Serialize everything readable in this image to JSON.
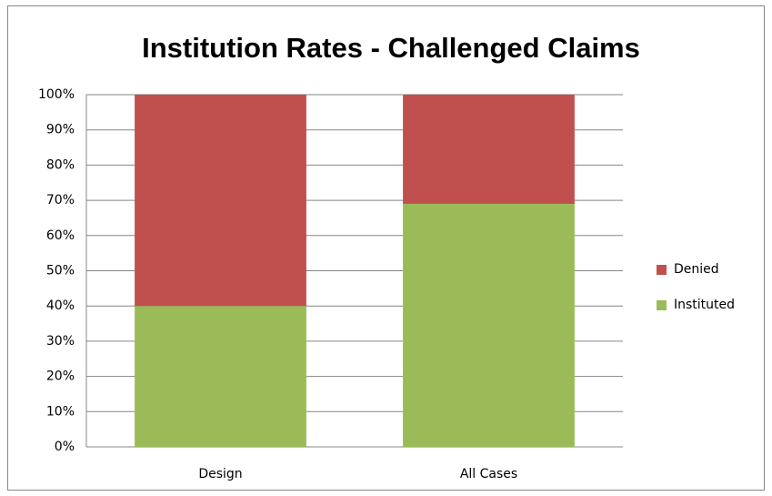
{
  "chart_data": {
    "type": "stacked_bar",
    "title": "Institution Rates - Challenged Claims",
    "categories": [
      "Design",
      "All Cases"
    ],
    "series": [
      {
        "name": "Instituted",
        "color": "#9bbb59",
        "values": [
          40,
          69
        ]
      },
      {
        "name": "Denied",
        "color": "#c0504d",
        "values": [
          60,
          31
        ]
      }
    ],
    "ylim": [
      0,
      100
    ],
    "yticks": [
      {
        "value": 0,
        "label": "0%"
      },
      {
        "value": 10,
        "label": "10%"
      },
      {
        "value": 20,
        "label": "20%"
      },
      {
        "value": 30,
        "label": "30%"
      },
      {
        "value": 40,
        "label": "40%"
      },
      {
        "value": 50,
        "label": "50%"
      },
      {
        "value": 60,
        "label": "60%"
      },
      {
        "value": 70,
        "label": "70%"
      },
      {
        "value": 80,
        "label": "80%"
      },
      {
        "value": 90,
        "label": "90%"
      },
      {
        "value": 100,
        "label": "100%"
      }
    ],
    "grid": true,
    "legend": "right"
  }
}
